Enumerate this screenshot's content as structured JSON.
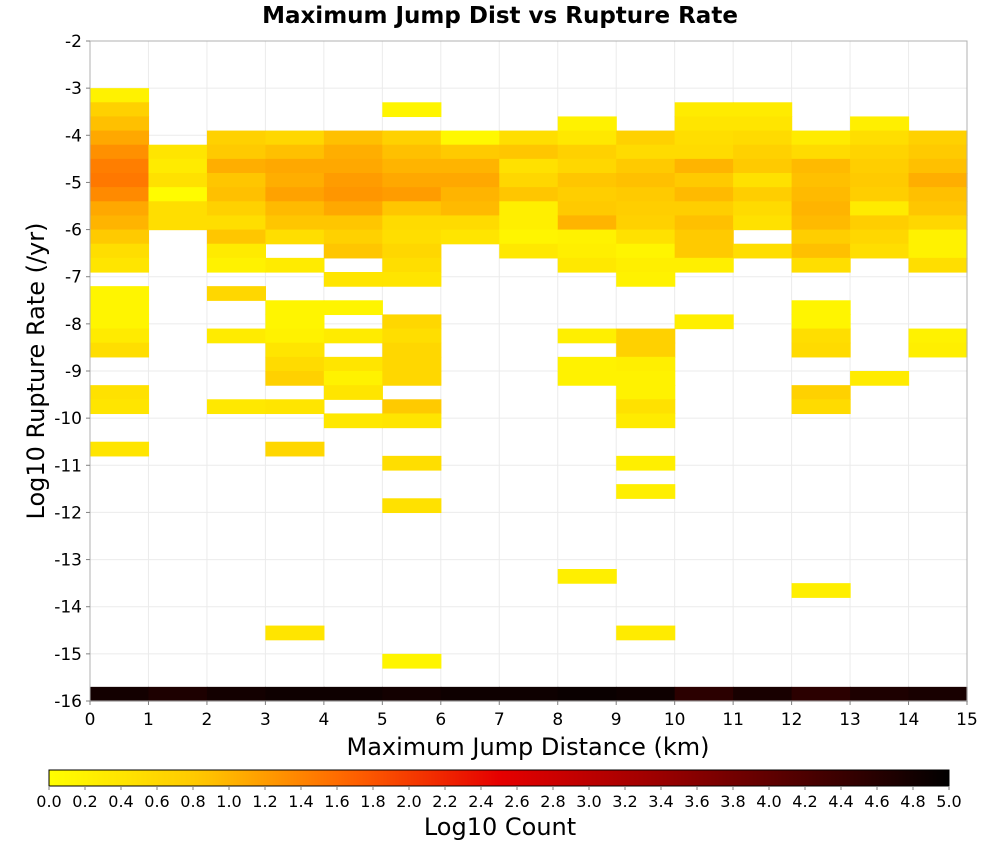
{
  "chart_data": {
    "type": "heatmap",
    "title": "Maximum Jump Dist vs Rupture Rate",
    "xlabel": "Maximum Jump Distance (km)",
    "ylabel": "Log10 Rupture Rate (/yr)",
    "colorbar_label": "Log10 Count",
    "xlim": [
      0,
      15
    ],
    "ylim": [
      -16,
      -2
    ],
    "x_ticks": [
      "0",
      "1",
      "2",
      "3",
      "4",
      "5",
      "6",
      "7",
      "8",
      "9",
      "10",
      "11",
      "12",
      "13",
      "14",
      "15"
    ],
    "y_ticks": [
      "-2",
      "-3",
      "-4",
      "-5",
      "-6",
      "-7",
      "-8",
      "-9",
      "-10",
      "-11",
      "-12",
      "-13",
      "-14",
      "-15",
      "-16"
    ],
    "colorbar_range": [
      0,
      5
    ],
    "colorbar_ticks": [
      "0.0",
      "0.2",
      "0.4",
      "0.6",
      "0.8",
      "1.0",
      "1.2",
      "1.4",
      "1.6",
      "1.8",
      "2.0",
      "2.2",
      "2.4",
      "2.6",
      "2.8",
      "3.0",
      "3.2",
      "3.4",
      "3.6",
      "3.8",
      "4.0",
      "4.2",
      "4.4",
      "4.6",
      "4.8",
      "5.0"
    ],
    "colormap": [
      "#ffff00",
      "#ffc800",
      "#ff6400",
      "#e60000",
      "#a00000",
      "#500000",
      "#000000"
    ],
    "grid": true,
    "y_bin_width": 0.3,
    "columns": [
      {
        "x": 0,
        "cells": [
          [
            -3.3,
            0.2
          ],
          [
            -3.6,
            0.7
          ],
          [
            -3.9,
            0.9
          ],
          [
            -4.2,
            1.1
          ],
          [
            -4.5,
            1.3
          ],
          [
            -4.8,
            1.45
          ],
          [
            -5.1,
            1.5
          ],
          [
            -5.4,
            1.35
          ],
          [
            -5.7,
            1.1
          ],
          [
            -6.0,
            1.0
          ],
          [
            -6.3,
            0.8
          ],
          [
            -6.6,
            0.5
          ],
          [
            -6.9,
            0.4
          ],
          [
            -7.5,
            0.15
          ],
          [
            -7.8,
            0.15
          ],
          [
            -8.1,
            0.15
          ],
          [
            -8.4,
            0.3
          ],
          [
            -8.7,
            0.5
          ],
          [
            -9.6,
            0.45
          ],
          [
            -9.9,
            0.4
          ],
          [
            -10.8,
            0.4
          ],
          [
            -16.0,
            4.8
          ]
        ]
      },
      {
        "x": 1,
        "cells": [
          [
            -4.5,
            0.4
          ],
          [
            -4.8,
            0.3
          ],
          [
            -5.1,
            0.45
          ],
          [
            -5.4,
            0.05
          ],
          [
            -5.7,
            0.5
          ],
          [
            -6.0,
            0.5
          ],
          [
            -16.0,
            4.7
          ]
        ]
      },
      {
        "x": 2,
        "cells": [
          [
            -4.2,
            0.7
          ],
          [
            -4.5,
            0.8
          ],
          [
            -4.8,
            1.05
          ],
          [
            -5.1,
            0.85
          ],
          [
            -5.4,
            0.9
          ],
          [
            -5.7,
            0.7
          ],
          [
            -6.0,
            0.5
          ],
          [
            -6.3,
            0.85
          ],
          [
            -6.6,
            0.3
          ],
          [
            -6.9,
            0.2
          ],
          [
            -7.5,
            0.6
          ],
          [
            -8.4,
            0.3
          ],
          [
            -9.9,
            0.35
          ],
          [
            -16.0,
            4.8
          ]
        ]
      },
      {
        "x": 3,
        "cells": [
          [
            -4.2,
            0.6
          ],
          [
            -4.5,
            0.9
          ],
          [
            -4.8,
            1.1
          ],
          [
            -5.1,
            1.05
          ],
          [
            -5.4,
            1.15
          ],
          [
            -5.7,
            0.95
          ],
          [
            -6.0,
            0.85
          ],
          [
            -6.3,
            0.5
          ],
          [
            -6.9,
            0.3
          ],
          [
            -7.8,
            0.15
          ],
          [
            -8.1,
            0.15
          ],
          [
            -8.4,
            0.2
          ],
          [
            -8.7,
            0.4
          ],
          [
            -9.0,
            0.55
          ],
          [
            -9.3,
            0.7
          ],
          [
            -9.9,
            0.4
          ],
          [
            -10.8,
            0.6
          ],
          [
            -14.7,
            0.4
          ],
          [
            -16.0,
            4.85
          ]
        ]
      },
      {
        "x": 4,
        "cells": [
          [
            -4.2,
            0.9
          ],
          [
            -4.5,
            1.05
          ],
          [
            -4.8,
            1.1
          ],
          [
            -5.1,
            1.2
          ],
          [
            -5.4,
            1.25
          ],
          [
            -5.7,
            1.1
          ],
          [
            -6.0,
            0.85
          ],
          [
            -6.3,
            0.7
          ],
          [
            -6.6,
            0.85
          ],
          [
            -7.2,
            0.4
          ],
          [
            -7.8,
            0.15
          ],
          [
            -8.4,
            0.3
          ],
          [
            -9.0,
            0.4
          ],
          [
            -9.3,
            0.2
          ],
          [
            -9.6,
            0.4
          ],
          [
            -10.2,
            0.35
          ],
          [
            -16.0,
            4.85
          ]
        ]
      },
      {
        "x": 5,
        "cells": [
          [
            -3.6,
            0.15
          ],
          [
            -4.2,
            0.7
          ],
          [
            -4.5,
            0.9
          ],
          [
            -4.8,
            1.0
          ],
          [
            -5.1,
            1.1
          ],
          [
            -5.4,
            1.2
          ],
          [
            -5.7,
            0.85
          ],
          [
            -6.0,
            0.55
          ],
          [
            -6.3,
            0.5
          ],
          [
            -6.6,
            0.6
          ],
          [
            -6.9,
            0.5
          ],
          [
            -7.2,
            0.4
          ],
          [
            -8.1,
            0.6
          ],
          [
            -8.4,
            0.5
          ],
          [
            -8.7,
            0.6
          ],
          [
            -9.0,
            0.6
          ],
          [
            -9.3,
            0.6
          ],
          [
            -9.9,
            0.8
          ],
          [
            -10.2,
            0.4
          ],
          [
            -11.1,
            0.5
          ],
          [
            -12.0,
            0.45
          ],
          [
            -15.3,
            0.15
          ],
          [
            -16.0,
            4.8
          ]
        ]
      },
      {
        "x": 6,
        "cells": [
          [
            -4.2,
            0.1
          ],
          [
            -4.5,
            0.8
          ],
          [
            -4.8,
            1.0
          ],
          [
            -5.1,
            1.1
          ],
          [
            -5.4,
            1.0
          ],
          [
            -5.7,
            0.95
          ],
          [
            -6.0,
            0.55
          ],
          [
            -6.3,
            0.4
          ],
          [
            -16.0,
            4.85
          ]
        ]
      },
      {
        "x": 7,
        "cells": [
          [
            -4.2,
            0.5
          ],
          [
            -4.5,
            0.85
          ],
          [
            -4.8,
            0.45
          ],
          [
            -5.1,
            0.6
          ],
          [
            -5.4,
            0.85
          ],
          [
            -5.7,
            0.25
          ],
          [
            -6.0,
            0.25
          ],
          [
            -6.3,
            0.15
          ],
          [
            -6.6,
            0.35
          ],
          [
            -16.0,
            4.85
          ]
        ]
      },
      {
        "x": 8,
        "cells": [
          [
            -3.9,
            0.2
          ],
          [
            -4.2,
            0.35
          ],
          [
            -4.5,
            0.7
          ],
          [
            -4.8,
            0.6
          ],
          [
            -5.1,
            0.85
          ],
          [
            -5.4,
            0.75
          ],
          [
            -5.7,
            0.8
          ],
          [
            -6.0,
            1.0
          ],
          [
            -6.3,
            0.2
          ],
          [
            -6.6,
            0.25
          ],
          [
            -6.9,
            0.35
          ],
          [
            -8.4,
            0.25
          ],
          [
            -9.0,
            0.2
          ],
          [
            -9.3,
            0.2
          ],
          [
            -13.5,
            0.25
          ],
          [
            -16.0,
            4.9
          ]
        ]
      },
      {
        "x": 9,
        "cells": [
          [
            -4.2,
            0.7
          ],
          [
            -4.5,
            0.55
          ],
          [
            -4.8,
            0.8
          ],
          [
            -5.1,
            0.9
          ],
          [
            -5.4,
            0.8
          ],
          [
            -5.7,
            0.75
          ],
          [
            -6.0,
            0.7
          ],
          [
            -6.3,
            0.45
          ],
          [
            -6.6,
            0.15
          ],
          [
            -6.9,
            0.25
          ],
          [
            -7.2,
            0.2
          ],
          [
            -8.4,
            0.7
          ],
          [
            -8.7,
            0.7
          ],
          [
            -9.0,
            0.25
          ],
          [
            -9.3,
            0.2
          ],
          [
            -9.6,
            0.2
          ],
          [
            -9.9,
            0.45
          ],
          [
            -10.2,
            0.3
          ],
          [
            -11.1,
            0.25
          ],
          [
            -11.7,
            0.25
          ],
          [
            -14.7,
            0.3
          ],
          [
            -16.0,
            4.85
          ]
        ]
      },
      {
        "x": 10,
        "cells": [
          [
            -3.6,
            0.3
          ],
          [
            -3.9,
            0.4
          ],
          [
            -4.2,
            0.5
          ],
          [
            -4.5,
            0.55
          ],
          [
            -4.8,
            1.0
          ],
          [
            -5.1,
            0.8
          ],
          [
            -5.4,
            0.95
          ],
          [
            -5.7,
            0.75
          ],
          [
            -6.0,
            0.9
          ],
          [
            -6.3,
            0.8
          ],
          [
            -6.6,
            0.8
          ],
          [
            -6.9,
            0.25
          ],
          [
            -8.1,
            0.25
          ],
          [
            -16.0,
            4.55
          ]
        ]
      },
      {
        "x": 11,
        "cells": [
          [
            -3.6,
            0.3
          ],
          [
            -3.9,
            0.4
          ],
          [
            -4.2,
            0.55
          ],
          [
            -4.5,
            0.7
          ],
          [
            -4.8,
            0.8
          ],
          [
            -5.1,
            0.45
          ],
          [
            -5.4,
            0.75
          ],
          [
            -5.7,
            0.55
          ],
          [
            -6.0,
            0.45
          ],
          [
            -6.6,
            0.5
          ],
          [
            -16.0,
            4.75
          ]
        ]
      },
      {
        "x": 12,
        "cells": [
          [
            -4.2,
            0.3
          ],
          [
            -4.5,
            0.55
          ],
          [
            -4.8,
            0.95
          ],
          [
            -5.1,
            0.9
          ],
          [
            -5.4,
            0.95
          ],
          [
            -5.7,
            1.0
          ],
          [
            -6.0,
            0.95
          ],
          [
            -6.3,
            0.75
          ],
          [
            -6.6,
            0.9
          ],
          [
            -6.9,
            0.5
          ],
          [
            -7.8,
            0.15
          ],
          [
            -8.1,
            0.15
          ],
          [
            -8.4,
            0.5
          ],
          [
            -8.7,
            0.55
          ],
          [
            -9.6,
            0.7
          ],
          [
            -9.9,
            0.55
          ],
          [
            -13.8,
            0.25
          ],
          [
            -16.0,
            4.55
          ]
        ]
      },
      {
        "x": 13,
        "cells": [
          [
            -3.9,
            0.25
          ],
          [
            -4.2,
            0.5
          ],
          [
            -4.5,
            0.65
          ],
          [
            -4.8,
            0.75
          ],
          [
            -5.1,
            0.8
          ],
          [
            -5.4,
            0.75
          ],
          [
            -5.7,
            0.3
          ],
          [
            -6.0,
            0.75
          ],
          [
            -6.3,
            0.6
          ],
          [
            -6.6,
            0.5
          ],
          [
            -9.3,
            0.3
          ],
          [
            -16.0,
            4.7
          ]
        ]
      },
      {
        "x": 14,
        "cells": [
          [
            -4.2,
            0.7
          ],
          [
            -4.5,
            0.8
          ],
          [
            -4.8,
            0.9
          ],
          [
            -5.1,
            1.05
          ],
          [
            -5.4,
            0.9
          ],
          [
            -5.7,
            0.85
          ],
          [
            -6.0,
            0.6
          ],
          [
            -6.3,
            0.2
          ],
          [
            -6.6,
            0.2
          ],
          [
            -6.9,
            0.5
          ],
          [
            -8.4,
            0.2
          ],
          [
            -8.7,
            0.25
          ],
          [
            -16.0,
            4.75
          ]
        ]
      }
    ]
  }
}
